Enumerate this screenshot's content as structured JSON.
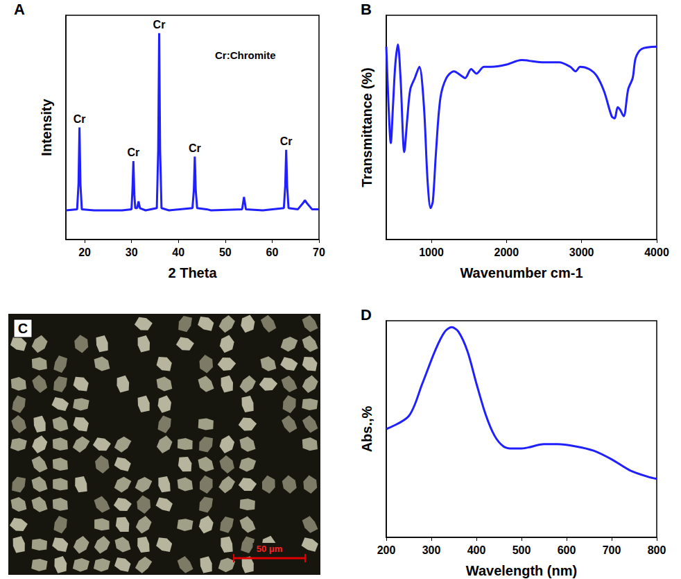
{
  "chart_data": [
    {
      "title": "A",
      "type": "line",
      "x_label": "2 Theta",
      "y_label": "Intensity",
      "color": "#1f1fff",
      "x": [
        16,
        18.4,
        18.7,
        18.9,
        19.1,
        19.4,
        22,
        28,
        30.0,
        30.2,
        30.4,
        30.6,
        30.8,
        31.2,
        31.5,
        31.8,
        33,
        35.4,
        35.7,
        35.9,
        36.1,
        36.4,
        38,
        43.0,
        43.3,
        43.5,
        43.7,
        44.0,
        46,
        47,
        53.6,
        54.0,
        54.4,
        58,
        62.5,
        62.8,
        63.0,
        63.2,
        63.5,
        65.5,
        66.5,
        67.0,
        67.5,
        68.5,
        70
      ],
      "values": [
        13,
        13.5,
        25,
        50,
        25,
        13.5,
        13,
        13,
        13.5,
        22,
        35,
        20,
        14,
        14,
        17,
        14,
        13,
        14,
        40,
        92,
        40,
        14,
        13,
        14,
        22,
        37,
        22,
        14,
        13.5,
        13,
        13.5,
        19,
        13.5,
        13,
        14,
        24,
        40,
        24,
        14,
        13.5,
        16,
        17.5,
        16,
        13.5,
        13.5
      ],
      "xlim": [
        16,
        70
      ],
      "xticks": [
        20,
        30,
        40,
        50,
        60,
        70
      ],
      "ylim": [
        0,
        100
      ],
      "tick_labels": "x",
      "grid": false,
      "annotations": [
        {
          "text": "Cr",
          "x": 18.9
        },
        {
          "text": "Cr",
          "x": 30.4
        },
        {
          "text": "Cr",
          "x": 35.9
        },
        {
          "text": "Cr",
          "x": 43.5
        },
        {
          "text": "Cr",
          "x": 63.0
        },
        {
          "text": "Cr:Chromite"
        }
      ]
    },
    {
      "title": "B",
      "type": "line",
      "x_label": "Wavenumber cm-1",
      "y_label": "Transmittance (%)",
      "color": "#1f1fff",
      "x": [
        400,
        430,
        460,
        490,
        520,
        555,
        590,
        640,
        680,
        720,
        780,
        840,
        900,
        950,
        990,
        1020,
        1060,
        1120,
        1200,
        1300,
        1400,
        1450,
        1530,
        1600,
        1700,
        1800,
        2000,
        2200,
        2500,
        2700,
        2850,
        2920,
        2980,
        3100,
        3200,
        3300,
        3400,
        3440,
        3480,
        3510,
        3560,
        3620,
        3680,
        3720,
        3800,
        4000
      ],
      "values": [
        86,
        60,
        43,
        60,
        78,
        87,
        72,
        39,
        54,
        67,
        72,
        77,
        60,
        26,
        14,
        17,
        38,
        63,
        72,
        75,
        73,
        72,
        76,
        74,
        77,
        77,
        78,
        80,
        79,
        79,
        77,
        75,
        77,
        76,
        73,
        66,
        55,
        54,
        59,
        58,
        55,
        67,
        72,
        81,
        85,
        86
      ],
      "xlim": [
        400,
        4000
      ],
      "xticks": [
        1000,
        2000,
        3000,
        4000
      ],
      "ylim": [
        0,
        100
      ],
      "tick_labels": "x",
      "grid": false
    },
    {
      "title": "C",
      "type": "image",
      "annotations": [
        {
          "text": "50 μm"
        }
      ]
    },
    {
      "title": "D",
      "type": "line",
      "x_label": "Wavelength (nm)",
      "y_label": "Abs.,%",
      "color": "#1f1fff",
      "x": [
        200,
        250,
        280,
        310,
        330,
        345,
        360,
        380,
        400,
        420,
        440,
        460,
        480,
        500,
        550,
        580,
        620,
        660,
        700,
        740,
        780,
        800
      ],
      "values": [
        50,
        56,
        71,
        87,
        95,
        97,
        95,
        86,
        71,
        57,
        47,
        42,
        41,
        41,
        43,
        43,
        42,
        40,
        36,
        31,
        28,
        27
      ],
      "xlim": [
        200,
        800
      ],
      "xticks": [
        200,
        300,
        400,
        500,
        600,
        700,
        800
      ],
      "ylim": [
        0,
        100
      ],
      "tick_labels": "x",
      "grid": false
    }
  ]
}
